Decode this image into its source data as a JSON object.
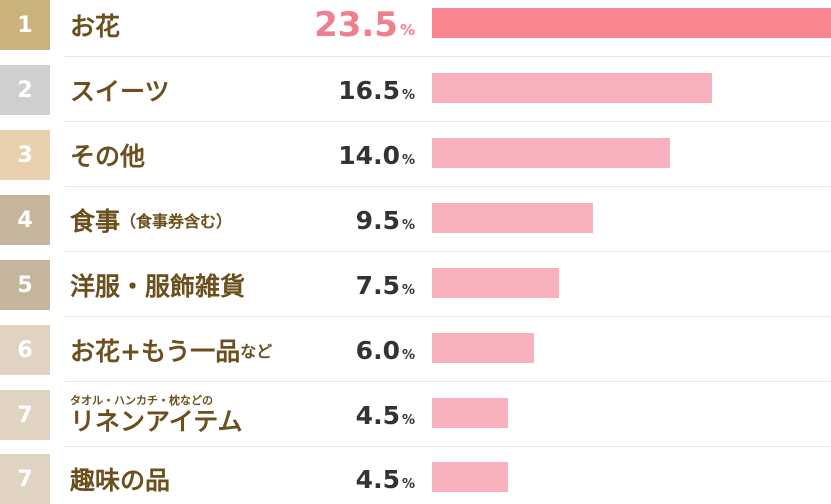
{
  "chart_data": {
    "type": "bar",
    "orientation": "horizontal",
    "unit": "%",
    "max": 23.5,
    "colors": {
      "top_bar": "#f98591",
      "bar": "#f8b1bc",
      "top_pct": "#ef7f8e",
      "label": "#6b4f1d"
    },
    "items": [
      {
        "rank": "1",
        "label": "お花",
        "sub": "",
        "value": 23.5,
        "display": "23.5",
        "unit": "%",
        "rank_color": "#c9b37b"
      },
      {
        "rank": "2",
        "label": "スイーツ",
        "sub": "",
        "value": 16.5,
        "display": "16.5",
        "unit": "%",
        "rank_color": "#cfcfcf"
      },
      {
        "rank": "3",
        "label": "その他",
        "sub": "",
        "value": 14.0,
        "display": "14.0",
        "unit": "%",
        "rank_color": "#e9d0ae"
      },
      {
        "rank": "4",
        "label": "食事",
        "sub": "（食事券含む）",
        "value": 9.5,
        "display": "9.5",
        "unit": "%",
        "rank_color": "#c6b59d"
      },
      {
        "rank": "5",
        "label": "洋服・服飾雑貨",
        "sub": "",
        "value": 7.5,
        "display": "7.5",
        "unit": "%",
        "rank_color": "#c6b59d"
      },
      {
        "rank": "6",
        "label": "お花+もう一品",
        "sub": "など",
        "value": 6.0,
        "display": "6.0",
        "unit": "%",
        "rank_color": "#e1d3c2"
      },
      {
        "rank": "7",
        "label": "リネンアイテム",
        "pre": "タオル・ハンカチ・枕などの",
        "sub": "",
        "value": 4.5,
        "display": "4.5",
        "unit": "%",
        "rank_color": "#e1d3c2"
      },
      {
        "rank": "7",
        "label": "趣味の品",
        "sub": "",
        "value": 4.5,
        "display": "4.5",
        "unit": "%",
        "rank_color": "#e1d3c2"
      }
    ]
  }
}
